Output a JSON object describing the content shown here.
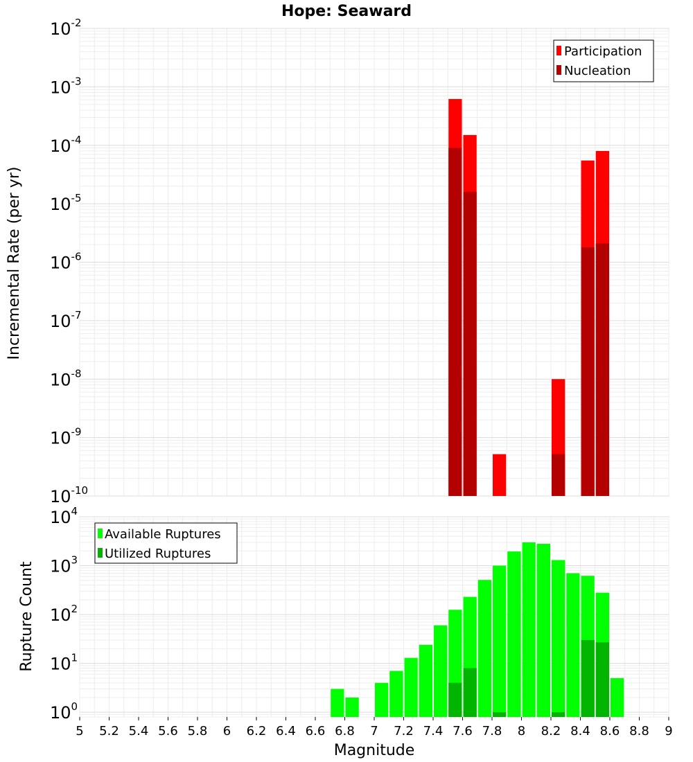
{
  "chart_data": [
    {
      "type": "bar",
      "title": "Hope: Seaward",
      "xlabel": "",
      "ylabel": "Incremental Rate (per yr)",
      "xlim": [
        5,
        9
      ],
      "ylim": [
        1e-10,
        0.01
      ],
      "yscale": "log",
      "bin_width": 0.1,
      "grid": true,
      "legend": "top-right",
      "series": [
        {
          "name": "Participation",
          "color": "#ff0000",
          "x": [
            7.55,
            7.65,
            7.85,
            8.25,
            8.45,
            8.55
          ],
          "values": [
            0.00062,
            0.00015,
            5.2e-10,
            1e-08,
            5.5e-05,
            8e-05
          ]
        },
        {
          "name": "Nucleation",
          "color": "#b30000",
          "x": [
            7.55,
            7.65,
            8.25,
            8.45,
            8.55
          ],
          "values": [
            9e-05,
            1.6e-05,
            5.2e-10,
            1.8e-06,
            2.1e-06
          ]
        }
      ]
    },
    {
      "type": "bar",
      "title": "",
      "xlabel": "Magnitude",
      "ylabel": "Rupture Count",
      "xlim": [
        5,
        9
      ],
      "ylim": [
        0.8,
        10000
      ],
      "yscale": "log",
      "bin_width": 0.1,
      "grid": true,
      "legend": "top-left",
      "x_ticks": [
        "5",
        "5.2",
        "5.4",
        "5.6",
        "5.8",
        "6",
        "6.2",
        "6.4",
        "6.6",
        "6.8",
        "7",
        "7.2",
        "7.4",
        "7.6",
        "7.8",
        "8",
        "8.2",
        "8.4",
        "8.6",
        "8.8",
        "9"
      ],
      "series": [
        {
          "name": "Available Ruptures",
          "color": "#00ff00",
          "x": [
            6.75,
            6.85,
            7.05,
            7.15,
            7.25,
            7.35,
            7.45,
            7.55,
            7.65,
            7.75,
            7.85,
            7.95,
            8.05,
            8.15,
            8.25,
            8.35,
            8.45,
            8.55,
            8.65
          ],
          "values": [
            3,
            2,
            4,
            7,
            13,
            24,
            60,
            125,
            230,
            510,
            1000,
            1950,
            3000,
            2800,
            1300,
            700,
            620,
            280,
            5
          ]
        },
        {
          "name": "Utilized Ruptures",
          "color": "#00b400",
          "x": [
            7.55,
            7.65,
            7.85,
            8.25,
            8.45,
            8.55
          ],
          "values": [
            4,
            8,
            1,
            1,
            30,
            27
          ]
        }
      ]
    }
  ]
}
